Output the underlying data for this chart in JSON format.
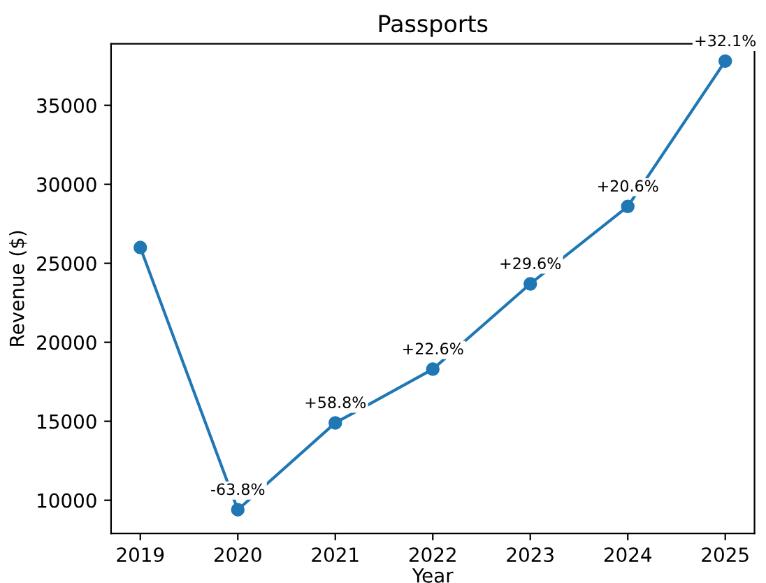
{
  "chart_data": {
    "type": "line",
    "title": "Passports",
    "xlabel": "Year",
    "ylabel": "Revenue ($)",
    "x": [
      2019,
      2020,
      2021,
      2022,
      2023,
      2024,
      2025
    ],
    "series": [
      {
        "color": "#1f77b4",
        "values": [
          26000,
          9400,
          14900,
          18300,
          23700,
          28600,
          37800
        ]
      }
    ],
    "annotations": [
      {
        "text": "-63.8%",
        "x": 2020,
        "y": 9400
      },
      {
        "text": "+58.8%",
        "x": 2021,
        "y": 14900
      },
      {
        "text": "+22.6%",
        "x": 2022,
        "y": 18300
      },
      {
        "text": "+29.6%",
        "x": 2023,
        "y": 23700
      },
      {
        "text": "+20.6%",
        "x": 2024,
        "y": 28600
      },
      {
        "text": "+32.1%",
        "x": 2025,
        "y": 37800
      }
    ],
    "xlim": [
      2018.7,
      2025.3
    ],
    "xticks": [
      2019,
      2020,
      2021,
      2022,
      2023,
      2024,
      2025
    ],
    "ylim": [
      7900,
      38900
    ],
    "yticks": [
      10000,
      15000,
      20000,
      25000,
      30000,
      35000
    ],
    "marker": "circle",
    "line_style": "solid",
    "grid": false
  }
}
